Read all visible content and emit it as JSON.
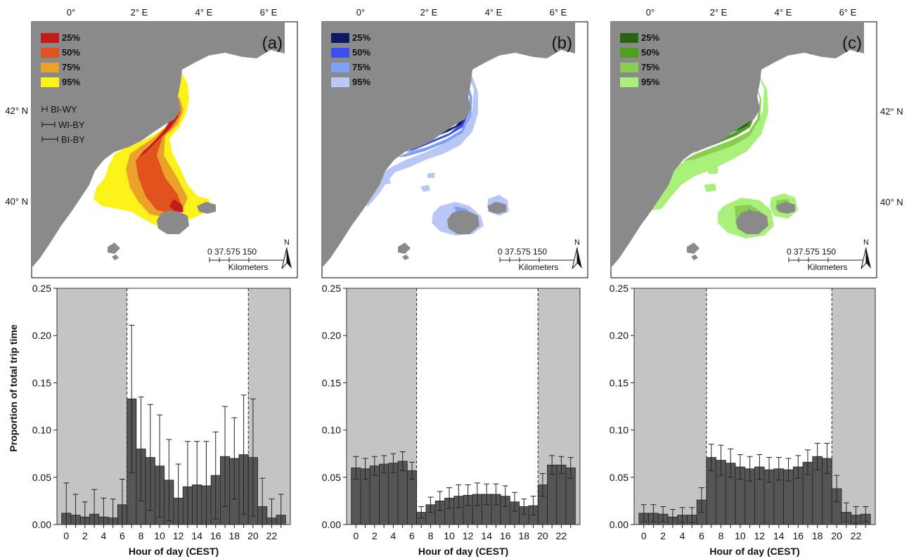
{
  "colors": {
    "land": "#8a8a8a",
    "sea": "#ffffff",
    "night": "#c4c4c4",
    "bar": "#555555",
    "a": [
      "#c41a1a",
      "#e2521d",
      "#eba22b",
      "#fbf21a"
    ],
    "b": [
      "#0c1a66",
      "#3a4ff0",
      "#7fa0f5",
      "#b9c7f7"
    ],
    "c": [
      "#2a6312",
      "#4f9e1c",
      "#8bcc52",
      "#a8f07a"
    ]
  },
  "maps": {
    "lon_labels": [
      "0°",
      "2° E",
      "4° E",
      "6° E"
    ],
    "lat_labels": [
      "42° N",
      "40° N"
    ],
    "legend_levels": [
      "25%",
      "50%",
      "75%",
      "95%"
    ],
    "scale_numbers": "0 37.575    150",
    "scale_unit": "Kilometers",
    "north": "N",
    "a": {
      "label": "(a)",
      "errorbar_legend": [
        "BI-WY",
        "WI-BY",
        "BI-BY"
      ]
    },
    "b": {
      "label": "(b)"
    },
    "c": {
      "label": "(c)"
    }
  },
  "chart_data": [
    {
      "type": "bar",
      "panel": "a",
      "xlabel": "Hour of day (CEST)",
      "ylabel": "Proportion of total trip time",
      "ylim": [
        0,
        0.25
      ],
      "yticks": [
        "0.00",
        "0.05",
        "0.10",
        "0.15",
        "0.20",
        "0.25"
      ],
      "xticks": [
        "0",
        "2",
        "4",
        "6",
        "8",
        "10",
        "12",
        "14",
        "16",
        "18",
        "20",
        "22"
      ],
      "night_before": 7,
      "night_after": 20,
      "hours": [
        0,
        1,
        2,
        3,
        4,
        5,
        6,
        7,
        8,
        9,
        10,
        11,
        12,
        13,
        14,
        15,
        16,
        17,
        18,
        19,
        20,
        21,
        22,
        23
      ],
      "values": [
        0.012,
        0.01,
        0.008,
        0.011,
        0.008,
        0.007,
        0.021,
        0.133,
        0.08,
        0.071,
        0.062,
        0.047,
        0.028,
        0.04,
        0.042,
        0.041,
        0.052,
        0.072,
        0.07,
        0.074,
        0.071,
        0.019,
        0.007,
        0.01
      ],
      "errors": [
        0.032,
        0.022,
        0.016,
        0.026,
        0.02,
        0.02,
        0.027,
        0.078,
        0.055,
        0.056,
        0.054,
        0.043,
        0.036,
        0.048,
        0.046,
        0.047,
        0.046,
        0.053,
        0.043,
        0.063,
        0.062,
        0.03,
        0.02,
        0.022
      ]
    },
    {
      "type": "bar",
      "panel": "b",
      "xlabel": "Hour of day (CEST)",
      "ylabel": "",
      "ylim": [
        0,
        0.25
      ],
      "yticks": [
        "0.00",
        "0.05",
        "0.10",
        "0.15",
        "0.20",
        "0.25"
      ],
      "xticks": [
        "0",
        "2",
        "4",
        "6",
        "8",
        "10",
        "12",
        "14",
        "16",
        "18",
        "20",
        "22"
      ],
      "night_before": 7,
      "night_after": 20,
      "hours": [
        0,
        1,
        2,
        3,
        4,
        5,
        6,
        7,
        8,
        9,
        10,
        11,
        12,
        13,
        14,
        15,
        16,
        17,
        18,
        19,
        20,
        21,
        22,
        23
      ],
      "values": [
        0.06,
        0.059,
        0.062,
        0.064,
        0.065,
        0.067,
        0.057,
        0.013,
        0.021,
        0.025,
        0.028,
        0.03,
        0.031,
        0.032,
        0.032,
        0.032,
        0.03,
        0.024,
        0.019,
        0.02,
        0.042,
        0.063,
        0.063,
        0.06
      ],
      "errors": [
        0.012,
        0.011,
        0.01,
        0.009,
        0.01,
        0.01,
        0.009,
        0.006,
        0.008,
        0.01,
        0.011,
        0.012,
        0.011,
        0.012,
        0.011,
        0.011,
        0.011,
        0.01,
        0.008,
        0.01,
        0.012,
        0.01,
        0.009,
        0.011
      ]
    },
    {
      "type": "bar",
      "panel": "c",
      "xlabel": "Hour of day (CEST)",
      "ylabel": "",
      "ylim": [
        0,
        0.25
      ],
      "yticks": [
        "0.00",
        "0.05",
        "0.10",
        "0.15",
        "0.20",
        "0.25"
      ],
      "xticks": [
        "0",
        "2",
        "4",
        "6",
        "8",
        "10",
        "12",
        "14",
        "16",
        "18",
        "20",
        "22"
      ],
      "night_before": 7,
      "night_after": 20,
      "hours": [
        0,
        1,
        2,
        3,
        4,
        5,
        6,
        7,
        8,
        9,
        10,
        11,
        12,
        13,
        14,
        15,
        16,
        17,
        18,
        19,
        20,
        21,
        22,
        23
      ],
      "values": [
        0.012,
        0.012,
        0.011,
        0.008,
        0.01,
        0.01,
        0.026,
        0.071,
        0.068,
        0.065,
        0.061,
        0.059,
        0.061,
        0.058,
        0.059,
        0.058,
        0.061,
        0.066,
        0.072,
        0.07,
        0.038,
        0.013,
        0.01,
        0.011
      ],
      "errors": [
        0.009,
        0.009,
        0.008,
        0.008,
        0.008,
        0.008,
        0.013,
        0.014,
        0.016,
        0.015,
        0.013,
        0.013,
        0.013,
        0.013,
        0.012,
        0.012,
        0.012,
        0.013,
        0.014,
        0.016,
        0.014,
        0.01,
        0.009,
        0.008
      ]
    }
  ]
}
